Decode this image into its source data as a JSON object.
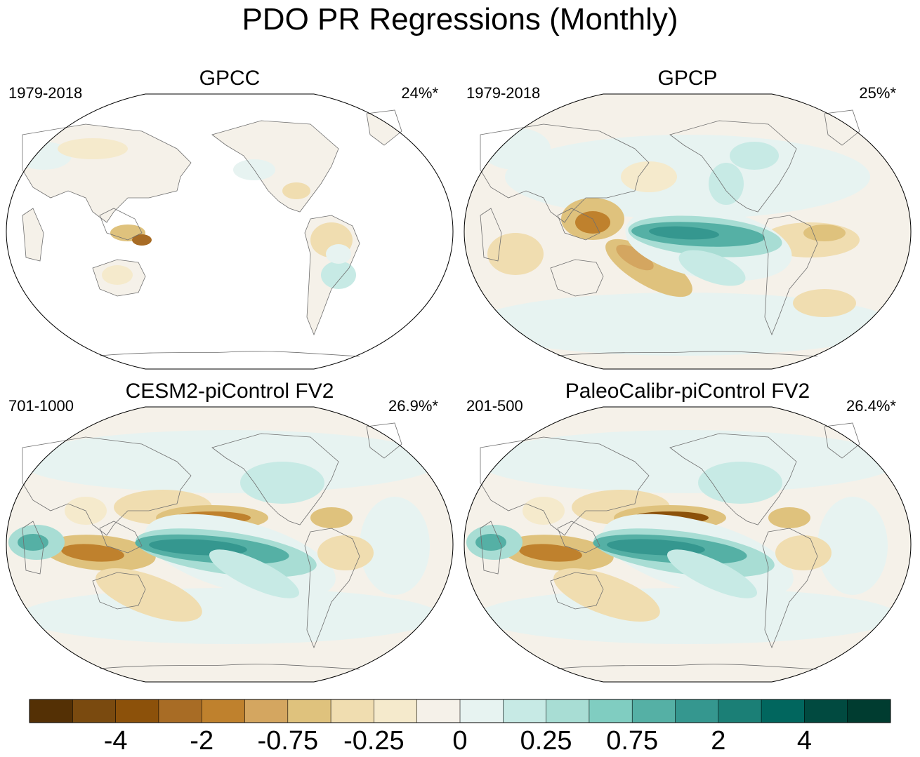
{
  "title": "PDO PR Regressions (Monthly)",
  "panels": [
    {
      "title": "GPCC",
      "period": "1979-2018",
      "variance": "24%*",
      "pattern": "gpcc"
    },
    {
      "title": "GPCP",
      "period": "1979-2018",
      "variance": "25%*",
      "pattern": "gpcp"
    },
    {
      "title": "CESM2-piControl FV2",
      "period": "701-1000",
      "variance": "26.9%*",
      "pattern": "model"
    },
    {
      "title": "PaleoCalibr-piControl FV2",
      "period": "201-500",
      "variance": "26.4%*",
      "pattern": "model2"
    }
  ],
  "colorbar": {
    "colors": [
      "#543005",
      "#7a4a0f",
      "#8c510a",
      "#a86c25",
      "#bf812d",
      "#d4a660",
      "#dfc27d",
      "#f0ddb0",
      "#f5eacc",
      "#f5f1e9",
      "#e7f3f1",
      "#c7eae5",
      "#a8ddd4",
      "#80cdc1",
      "#55b0a5",
      "#35978f",
      "#1b7f76",
      "#01665e",
      "#014a40",
      "#003c30"
    ],
    "labels": [
      "-4",
      "-2",
      "-0.75",
      "-0.25",
      "0",
      "0.25",
      "0.75",
      "2",
      "4"
    ]
  }
}
